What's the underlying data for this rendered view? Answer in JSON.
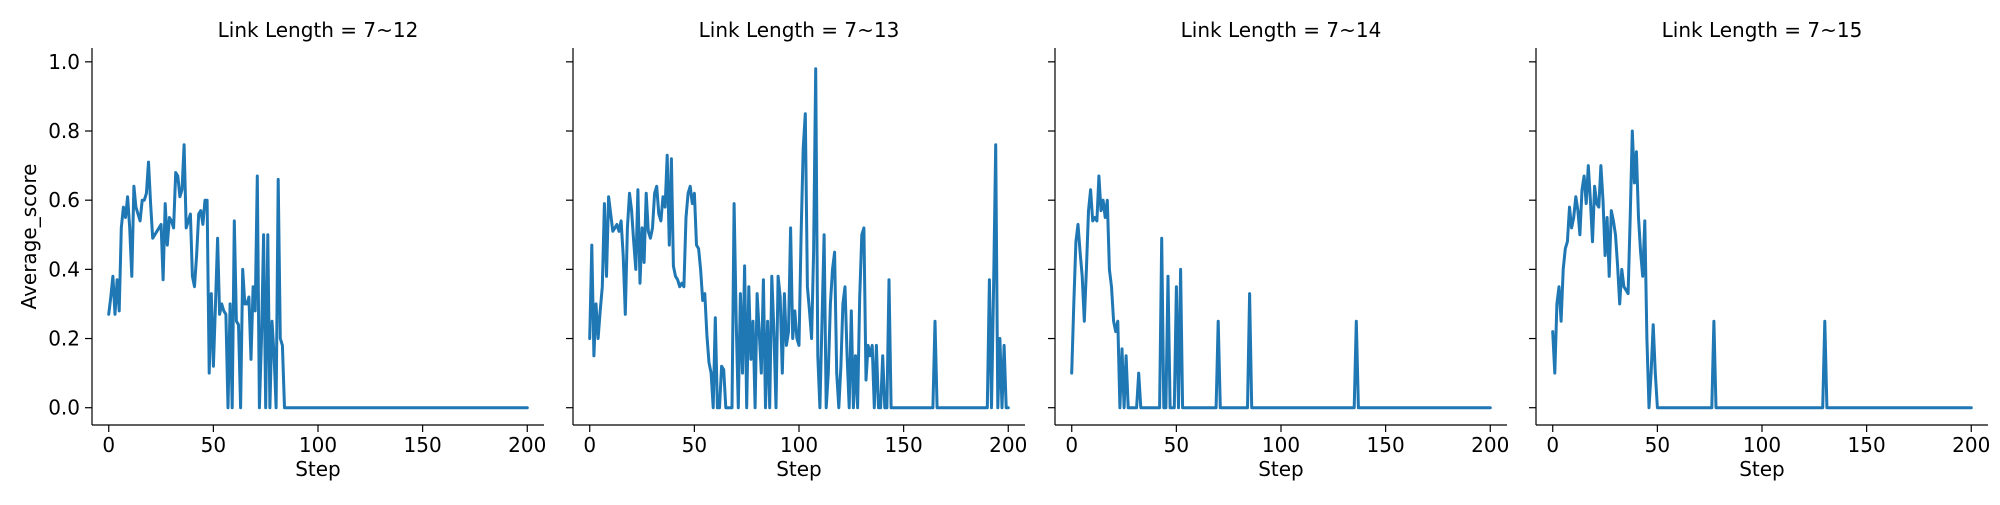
{
  "chart_data": {
    "type": "line",
    "ylabel": "Average_score",
    "xlabel": "Step",
    "xlim": [
      -8,
      208
    ],
    "ylim": [
      -0.05,
      1.04
    ],
    "xticks": [
      "0",
      "50",
      "100",
      "150",
      "200"
    ],
    "yticks": [
      "0.0",
      "0.2",
      "0.4",
      "0.6",
      "0.8",
      "1.0"
    ],
    "shared_y": true,
    "grid": false,
    "line_color": "#1f77b4",
    "panels": [
      {
        "title": "Link Length = 7~12",
        "series": [
          {
            "x": [
              0,
              1,
              2,
              3,
              4,
              5,
              6,
              7,
              8,
              9,
              10,
              11,
              12,
              13,
              14,
              15,
              16,
              17,
              18,
              19,
              20,
              21,
              22,
              23,
              24,
              25,
              26,
              27,
              28,
              29,
              30,
              31,
              32,
              33,
              34,
              35,
              36,
              37,
              38,
              39,
              40,
              41,
              42,
              43,
              44,
              45,
              46,
              47,
              48,
              49,
              50,
              51,
              52,
              53,
              54,
              55,
              56,
              57,
              58,
              59,
              60,
              61,
              62,
              63,
              64,
              65,
              66,
              67,
              68,
              69,
              70,
              71,
              72,
              73,
              74,
              75,
              76,
              77,
              78,
              79,
              80,
              81,
              82,
              83,
              84,
              200
            ],
            "y": [
              0.27,
              0.32,
              0.38,
              0.27,
              0.37,
              0.28,
              0.52,
              0.58,
              0.55,
              0.61,
              0.52,
              0.38,
              0.64,
              0.58,
              0.56,
              0.54,
              0.6,
              0.6,
              0.62,
              0.71,
              0.59,
              0.49,
              0.5,
              0.51,
              0.52,
              0.53,
              0.37,
              0.59,
              0.47,
              0.55,
              0.54,
              0.52,
              0.68,
              0.67,
              0.61,
              0.63,
              0.76,
              0.52,
              0.54,
              0.56,
              0.38,
              0.35,
              0.44,
              0.56,
              0.57,
              0.53,
              0.6,
              0.6,
              0.1,
              0.33,
              0.12,
              0.3,
              0.49,
              0.27,
              0.3,
              0.28,
              0.27,
              0.0,
              0.3,
              0.0,
              0.54,
              0.25,
              0.24,
              0.0,
              0.4,
              0.3,
              0.3,
              0.32,
              0.14,
              0.35,
              0.28,
              0.67,
              0.0,
              0.2,
              0.5,
              0.0,
              0.5,
              0.0,
              0.25,
              0.15,
              0.0,
              0.66,
              0.2,
              0.18,
              0.0,
              0.0
            ]
          }
        ]
      },
      {
        "title": "Link Length = 7~13",
        "series": [
          {
            "x": [
              0,
              1,
              2,
              3,
              4,
              5,
              6,
              7,
              8,
              9,
              10,
              11,
              12,
              13,
              14,
              15,
              16,
              17,
              18,
              19,
              20,
              21,
              22,
              23,
              24,
              25,
              26,
              27,
              28,
              29,
              30,
              31,
              32,
              33,
              34,
              35,
              36,
              37,
              38,
              39,
              40,
              41,
              42,
              43,
              44,
              45,
              46,
              47,
              48,
              49,
              50,
              51,
              52,
              53,
              54,
              55,
              56,
              57,
              58,
              59,
              60,
              61,
              62,
              63,
              64,
              65,
              66,
              67,
              68,
              69,
              70,
              71,
              72,
              73,
              74,
              75,
              76,
              77,
              78,
              79,
              80,
              81,
              82,
              83,
              84,
              85,
              86,
              87,
              88,
              89,
              90,
              91,
              92,
              93,
              94,
              95,
              96,
              97,
              98,
              99,
              100,
              101,
              102,
              103,
              104,
              105,
              106,
              107,
              108,
              109,
              110,
              111,
              112,
              113,
              114,
              115,
              116,
              117,
              118,
              119,
              120,
              121,
              122,
              123,
              124,
              125,
              126,
              127,
              128,
              129,
              130,
              131,
              132,
              133,
              134,
              135,
              136,
              137,
              138,
              139,
              140,
              141,
              142,
              143,
              144,
              145,
              146,
              147,
              148,
              164,
              165,
              166,
              190,
              191,
              192,
              193,
              194,
              195,
              196,
              197,
              198,
              199,
              200
            ],
            "y": [
              0.2,
              0.47,
              0.15,
              0.3,
              0.2,
              0.28,
              0.35,
              0.59,
              0.38,
              0.61,
              0.56,
              0.51,
              0.52,
              0.53,
              0.51,
              0.54,
              0.44,
              0.27,
              0.52,
              0.62,
              0.57,
              0.48,
              0.4,
              0.63,
              0.36,
              0.52,
              0.42,
              0.62,
              0.51,
              0.49,
              0.52,
              0.62,
              0.64,
              0.56,
              0.54,
              0.61,
              0.58,
              0.73,
              0.47,
              0.72,
              0.41,
              0.38,
              0.37,
              0.35,
              0.36,
              0.35,
              0.55,
              0.62,
              0.64,
              0.59,
              0.62,
              0.47,
              0.46,
              0.4,
              0.31,
              0.33,
              0.21,
              0.13,
              0.1,
              0.0,
              0.26,
              0.0,
              0.0,
              0.12,
              0.11,
              0.0,
              0.0,
              0.0,
              0.0,
              0.59,
              0.25,
              0.0,
              0.33,
              0.1,
              0.41,
              0.0,
              0.35,
              0.14,
              0.25,
              0.0,
              0.33,
              0.22,
              0.1,
              0.37,
              0.0,
              0.25,
              0.0,
              0.38,
              0.22,
              0.0,
              0.38,
              0.32,
              0.1,
              0.33,
              0.18,
              0.22,
              0.52,
              0.2,
              0.28,
              0.2,
              0.18,
              0.5,
              0.75,
              0.85,
              0.35,
              0.28,
              0.2,
              0.45,
              0.98,
              0.15,
              0.0,
              0.25,
              0.5,
              0.0,
              0.1,
              0.3,
              0.4,
              0.45,
              0.1,
              0.0,
              0.12,
              0.3,
              0.35,
              0.15,
              0.0,
              0.28,
              0.0,
              0.15,
              0.0,
              0.32,
              0.5,
              0.52,
              0.08,
              0.18,
              0.15,
              0.18,
              0.0,
              0.18,
              0.0,
              0.0,
              0.15,
              0.0,
              0.0,
              0.37,
              0.0,
              0.0,
              0.0,
              0.0,
              0.0,
              0.0,
              0.25,
              0.0,
              0.0,
              0.37,
              0.0,
              0.35,
              0.76,
              0.0,
              0.2,
              0.0,
              0.18,
              0.0,
              0.0
            ]
          }
        ]
      },
      {
        "title": "Link Length = 7~14",
        "series": [
          {
            "x": [
              0,
              1,
              2,
              3,
              4,
              5,
              6,
              7,
              8,
              9,
              10,
              11,
              12,
              13,
              14,
              15,
              16,
              17,
              18,
              19,
              20,
              21,
              22,
              23,
              24,
              25,
              26,
              27,
              28,
              29,
              30,
              31,
              32,
              33,
              34,
              35,
              36,
              42,
              43,
              44,
              45,
              46,
              47,
              48,
              49,
              50,
              51,
              52,
              53,
              54,
              55,
              56,
              68,
              69,
              70,
              71,
              72,
              83,
              84,
              85,
              86,
              87,
              135,
              136,
              137,
              200
            ],
            "y": [
              0.1,
              0.3,
              0.48,
              0.53,
              0.45,
              0.38,
              0.25,
              0.4,
              0.57,
              0.63,
              0.54,
              0.55,
              0.54,
              0.67,
              0.57,
              0.6,
              0.55,
              0.6,
              0.4,
              0.35,
              0.25,
              0.22,
              0.25,
              0.0,
              0.17,
              0.0,
              0.15,
              0.0,
              0.0,
              0.0,
              0.0,
              0.0,
              0.1,
              0.0,
              0.0,
              0.0,
              0.0,
              0.0,
              0.49,
              0.0,
              0.0,
              0.38,
              0.0,
              0.0,
              0.0,
              0.35,
              0.0,
              0.4,
              0.0,
              0.0,
              0.0,
              0.0,
              0.0,
              0.0,
              0.25,
              0.0,
              0.0,
              0.0,
              0.0,
              0.33,
              0.0,
              0.0,
              0.0,
              0.25,
              0.0,
              0.0
            ]
          }
        ]
      },
      {
        "title": "Link Length = 7~15",
        "series": [
          {
            "x": [
              0,
              1,
              2,
              3,
              4,
              5,
              6,
              7,
              8,
              9,
              10,
              11,
              12,
              13,
              14,
              15,
              16,
              17,
              18,
              19,
              20,
              21,
              22,
              23,
              24,
              25,
              26,
              27,
              28,
              29,
              30,
              31,
              32,
              33,
              34,
              35,
              36,
              37,
              38,
              39,
              40,
              41,
              42,
              43,
              44,
              45,
              46,
              47,
              48,
              49,
              50,
              51,
              52,
              53,
              76,
              77,
              78,
              129,
              130,
              131,
              200
            ],
            "y": [
              0.22,
              0.1,
              0.3,
              0.35,
              0.25,
              0.4,
              0.46,
              0.48,
              0.58,
              0.52,
              0.55,
              0.61,
              0.57,
              0.5,
              0.63,
              0.67,
              0.59,
              0.7,
              0.6,
              0.48,
              0.64,
              0.59,
              0.58,
              0.7,
              0.6,
              0.44,
              0.55,
              0.38,
              0.57,
              0.54,
              0.5,
              0.41,
              0.3,
              0.4,
              0.35,
              0.34,
              0.33,
              0.55,
              0.8,
              0.65,
              0.74,
              0.55,
              0.45,
              0.38,
              0.54,
              0.2,
              0.0,
              0.1,
              0.24,
              0.1,
              0.0,
              0.0,
              0.0,
              0.0,
              0.0,
              0.25,
              0.0,
              0.0,
              0.25,
              0.0,
              0.0
            ]
          }
        ]
      }
    ]
  }
}
